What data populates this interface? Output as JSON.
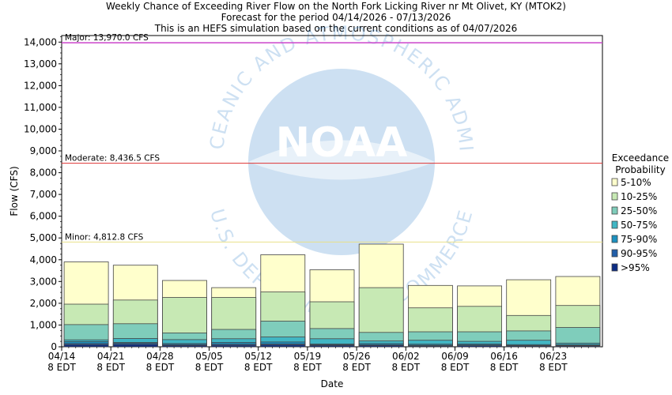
{
  "chart_data": {
    "type": "bar",
    "title_lines": [
      "Weekly Chance of Exceeding River Flow on the North Fork Licking River nr Mt Olivet, KY (MTOK2)",
      "Forecast for the period 04/14/2026 - 07/13/2026",
      "This is an HEFS simulation based on the current conditions as of 04/07/2026"
    ],
    "xlabel": "Date",
    "ylabel": "Flow (CFS)",
    "ylim": [
      0,
      14300
    ],
    "yticks": [
      0,
      1000,
      2000,
      3000,
      4000,
      5000,
      6000,
      7000,
      8000,
      9000,
      10000,
      11000,
      12000,
      13000,
      14000
    ],
    "ytick_labels": [
      "0",
      "1,000",
      "2,000",
      "3,000",
      "4,000",
      "5,000",
      "6,000",
      "7,000",
      "8,000",
      "9,000",
      "10,000",
      "11,000",
      "12,000",
      "13,000",
      "14,000"
    ],
    "categories": [
      [
        "04/14",
        "8 EDT"
      ],
      [
        "04/21",
        "8 EDT"
      ],
      [
        "04/28",
        "8 EDT"
      ],
      [
        "05/05",
        "8 EDT"
      ],
      [
        "05/12",
        "8 EDT"
      ],
      [
        "05/19",
        "8 EDT"
      ],
      [
        "05/26",
        "8 EDT"
      ],
      [
        "06/02",
        "8 EDT"
      ],
      [
        "06/09",
        "8 EDT"
      ],
      [
        "06/16",
        "8 EDT"
      ],
      [
        "06/23",
        "8 EDT"
      ]
    ],
    "grid": false,
    "thresholds": [
      {
        "label": "Major: 13,970.0 CFS",
        "value": 13970.0,
        "color": "#cc44cc"
      },
      {
        "label": "Moderate: 8,436.5 CFS",
        "value": 8436.5,
        "color": "#dd3333"
      },
      {
        "label": "Minor: 4,812.8 CFS",
        "value": 4812.8,
        "color": "#e8e088"
      }
    ],
    "legend": {
      "title_lines": [
        "Exceedance",
        "Probability"
      ],
      "placement": "right"
    },
    "series": [
      {
        "name": "5-10%",
        "color": "#ffffcc",
        "values": [
          3900,
          3750,
          3050,
          2720,
          4230,
          3540,
          4720,
          2820,
          2800,
          3080,
          3230
        ]
      },
      {
        "name": "10-25%",
        "color": "#c7e9b4",
        "values": [
          1960,
          2150,
          2270,
          2270,
          2520,
          2070,
          2720,
          1790,
          1860,
          1440,
          1900
        ]
      },
      {
        "name": "25-50%",
        "color": "#7fcdbb",
        "values": [
          1020,
          1060,
          640,
          800,
          1180,
          840,
          660,
          690,
          690,
          730,
          890
        ]
      },
      {
        "name": "50-75%",
        "color": "#41b6c4",
        "values": [
          320,
          380,
          330,
          370,
          450,
          370,
          270,
          300,
          250,
          300,
          170
        ]
      },
      {
        "name": "75-90%",
        "color": "#1d91c0",
        "values": [
          240,
          200,
          150,
          200,
          220,
          130,
          150,
          120,
          130,
          100,
          100
        ]
      },
      {
        "name": "90-95%",
        "color": "#225ea8",
        "values": [
          150,
          160,
          100,
          120,
          130,
          90,
          90,
          70,
          80,
          60,
          60
        ]
      },
      {
        "name": ">95%",
        "color": "#0c2c84",
        "values": [
          90,
          100,
          60,
          70,
          80,
          60,
          60,
          40,
          50,
          40,
          40
        ]
      }
    ],
    "watermark": {
      "text": "NOAA",
      "ring_text": "NATIONAL OCEANIC AND ATMOSPHERIC ADMINISTRATION",
      "ring_text_bottom": "U.S. DEPARTMENT OF COMMERCE"
    }
  }
}
